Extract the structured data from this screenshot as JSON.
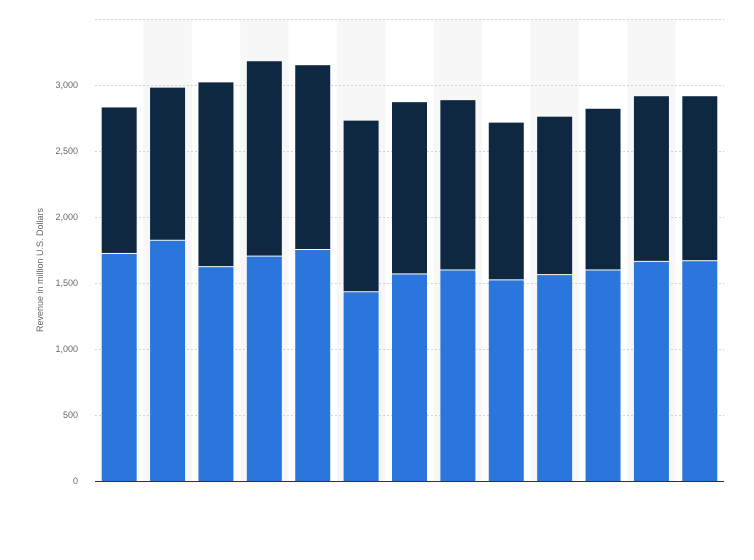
{
  "chart_data": {
    "type": "bar",
    "stacked": true,
    "title": "",
    "xlabel": "",
    "ylabel": "Revenue in million U.S. Dollars",
    "ylim": [
      0,
      3500
    ],
    "yticks": [
      0,
      500,
      1000,
      1500,
      2000,
      2500,
      3000
    ],
    "ytick_labels": [
      "0",
      "500",
      "1,000",
      "1,500",
      "2,000",
      "2,500",
      "3,000"
    ],
    "grid": true,
    "legend": "none",
    "categories": [
      "",
      "",
      "",
      "",
      "",
      "",
      "",
      "",
      "",
      "",
      "",
      "",
      ""
    ],
    "series": [
      {
        "color": "#2a76dc",
        "values": [
          1720,
          1820,
          1620,
          1700,
          1750,
          1430,
          1565,
          1595,
          1520,
          1560,
          1595,
          1660,
          1665
        ]
      },
      {
        "color": "#0e2841",
        "values": [
          1110,
          1160,
          1400,
          1480,
          1400,
          1300,
          1305,
          1290,
          1195,
          1200,
          1225,
          1255,
          1250
        ]
      }
    ]
  }
}
